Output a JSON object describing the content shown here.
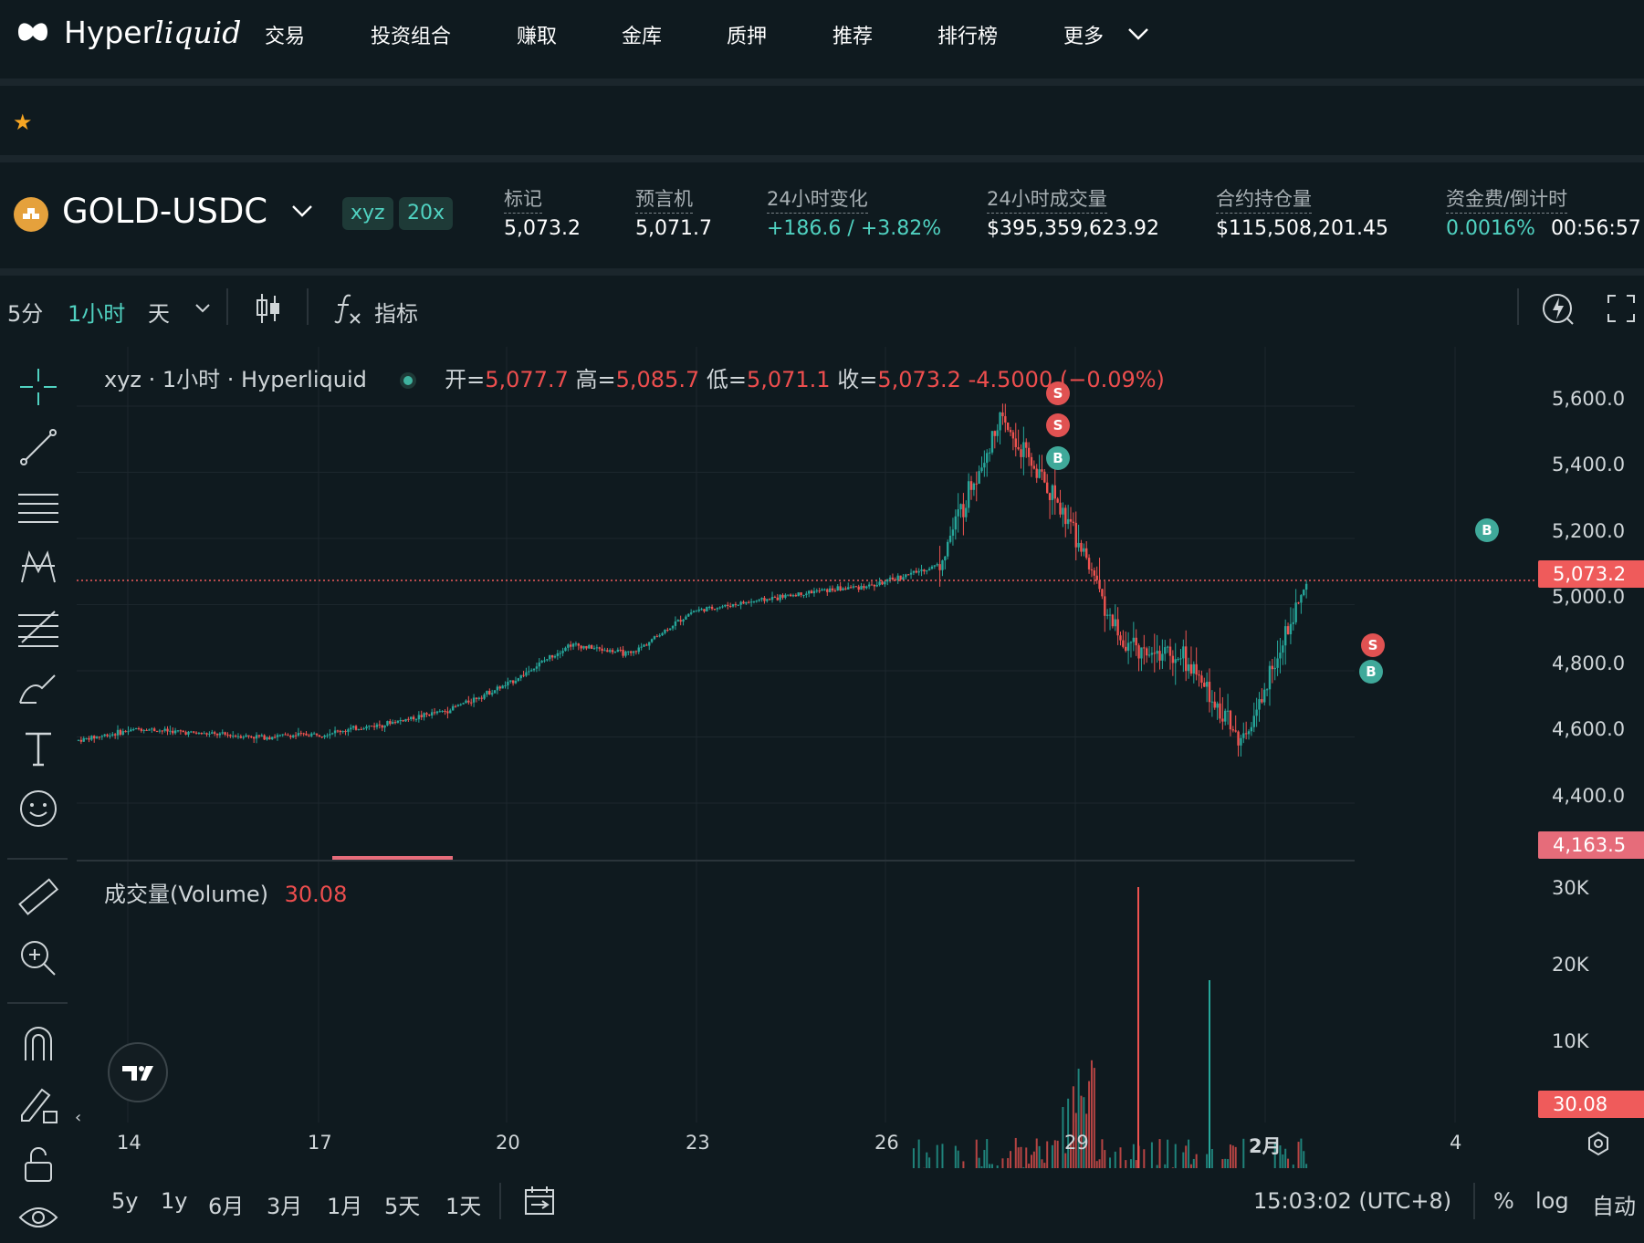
{
  "nav": {
    "brand_main": "Hyper",
    "brand_italic": "liquid",
    "items": [
      "交易",
      "投资组合",
      "赚取",
      "金库",
      "质押",
      "推荐",
      "排行榜",
      "更多"
    ]
  },
  "market": {
    "pair": "GOLD-USDC",
    "badges": [
      "xyz",
      "20x"
    ],
    "stats": [
      {
        "label": "标记",
        "value": "5,073.2"
      },
      {
        "label": "预言机",
        "value": "5,071.7"
      },
      {
        "label": "24小时变化",
        "value": "+186.6 / +3.82%"
      },
      {
        "label": "24小时成交量",
        "value": "$395,359,623.92"
      },
      {
        "label": "合约持仓量",
        "value": "$115,508,201.45"
      },
      {
        "label": "资金费/倒计时",
        "value": "0.0016%",
        "value2": "00:56:57"
      }
    ]
  },
  "toolbar": {
    "intervals": [
      "5分",
      "1小时",
      "天"
    ],
    "active_interval": "1小时",
    "indicators_label": "指标"
  },
  "legend": {
    "symbol": "xyz · 1小时 · Hyperliquid",
    "open_label": "开=",
    "open": "5,077.7",
    "high_label": "高=",
    "high": "5,085.7",
    "low_label": "低=",
    "low": "5,071.1",
    "close_label": "收=",
    "close": "5,073.2",
    "change": "-4.5000 (−0.09%)"
  },
  "volume_legend": {
    "label": "成交量(Volume)",
    "value": "30.08"
  },
  "y_axis": {
    "price_ticks": [
      "5,600.0",
      "5,400.0",
      "5,200.0",
      "5,000.0",
      "4,800.0",
      "4,600.0",
      "4,400.0"
    ],
    "volume_ticks": [
      "30K",
      "20K",
      "10K"
    ]
  },
  "price_tags": {
    "last": "5,073.2",
    "cursor": "4,163.5",
    "volume": "30.08"
  },
  "x_axis": [
    "14",
    "17",
    "20",
    "23",
    "26",
    "29",
    "2月",
    "4"
  ],
  "trade_markers": [
    "S",
    "S",
    "B",
    "B",
    "S",
    "B"
  ],
  "bottom": {
    "ranges": [
      "5y",
      "1y",
      "6月",
      "3月",
      "1月",
      "5天",
      "1天"
    ],
    "time": "15:03:02 (UTC+8)",
    "percent": "%",
    "log": "log",
    "auto": "自动"
  },
  "colors": {
    "up": "#26a69a",
    "down": "#ef5350",
    "accent": "#50d2c1",
    "star": "#f7a623"
  },
  "chart_data": {
    "type": "candlestick",
    "title": "",
    "ylim": [
      4163.5,
      5700
    ],
    "x_labels": [
      "14",
      "17",
      "20",
      "23",
      "26",
      "29",
      "2月",
      "4"
    ],
    "close_path": [
      {
        "x": "14",
        "y": 4590
      },
      {
        "x": "15",
        "y": 4625
      },
      {
        "x": "16",
        "y": 4610
      },
      {
        "x": "17",
        "y": 4600
      },
      {
        "x": "18",
        "y": 4610
      },
      {
        "x": "19",
        "y": 4640
      },
      {
        "x": "20",
        "y": 4680
      },
      {
        "x": "21",
        "y": 4760
      },
      {
        "x": "22",
        "y": 4880
      },
      {
        "x": "23",
        "y": 4850
      },
      {
        "x": "24",
        "y": 4980
      },
      {
        "x": "25",
        "y": 5010
      },
      {
        "x": "26",
        "y": 5040
      },
      {
        "x": "27",
        "y": 5060
      },
      {
        "x": "28",
        "y": 5120
      },
      {
        "x": "29",
        "y": 5560
      },
      {
        "x": "30",
        "y": 5300
      },
      {
        "x": "31",
        "y": 4880
      },
      {
        "x": "2月",
        "y": 4840
      },
      {
        "x": "3",
        "y": 4580
      },
      {
        "x": "4",
        "y": 5073.2
      }
    ]
  }
}
